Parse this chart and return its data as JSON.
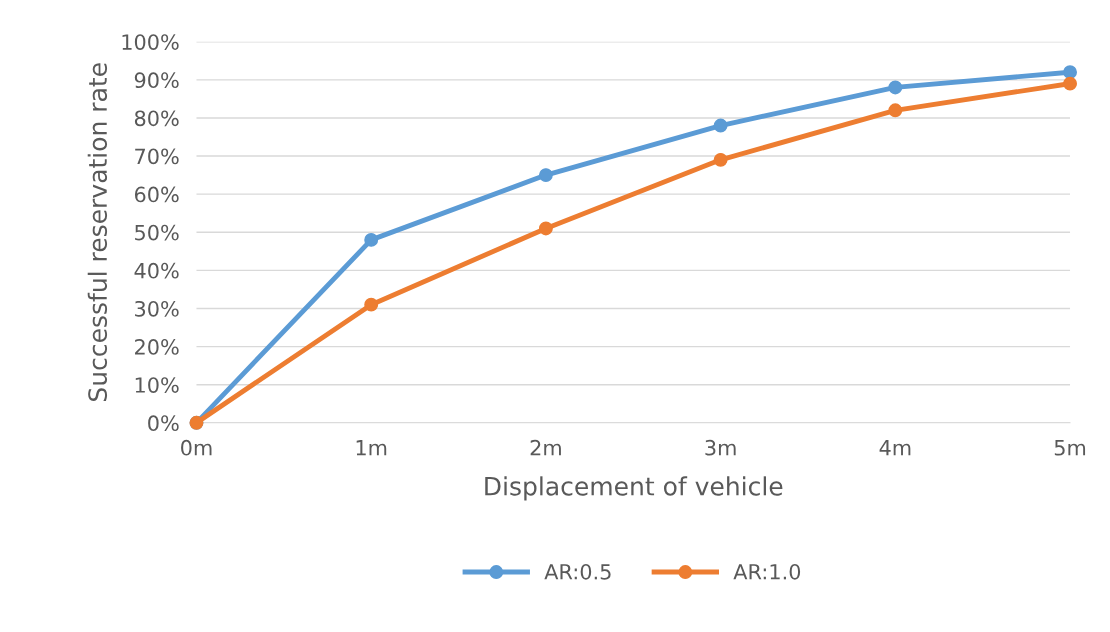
{
  "chart_data": {
    "type": "line",
    "xlabel": "Displacement of vehicle",
    "ylabel": "Successful reservation rate",
    "categories": [
      "0m",
      "1m",
      "2m",
      "3m",
      "4m",
      "5m"
    ],
    "series": [
      {
        "name": "AR:0.5",
        "color": "#5b9bd5",
        "values": [
          0,
          48,
          65,
          78,
          88,
          92
        ]
      },
      {
        "name": "AR:1.0",
        "color": "#ed7d31",
        "values": [
          0,
          31,
          51,
          69,
          82,
          89
        ]
      }
    ],
    "ylim": [
      0,
      100
    ],
    "yticks": [
      {
        "value": 0,
        "label": "0%"
      },
      {
        "value": 10,
        "label": "10%"
      },
      {
        "value": 20,
        "label": "20%"
      },
      {
        "value": 30,
        "label": "30%"
      },
      {
        "value": 40,
        "label": "40%"
      },
      {
        "value": 50,
        "label": "50%"
      },
      {
        "value": 60,
        "label": "60%"
      },
      {
        "value": 70,
        "label": "70%"
      },
      {
        "value": 80,
        "label": "80%"
      },
      {
        "value": 90,
        "label": "90%"
      },
      {
        "value": 100,
        "label": "100%"
      }
    ],
    "grid": "y",
    "legend": "bottom",
    "marker": "circle",
    "line_style": "solid"
  }
}
